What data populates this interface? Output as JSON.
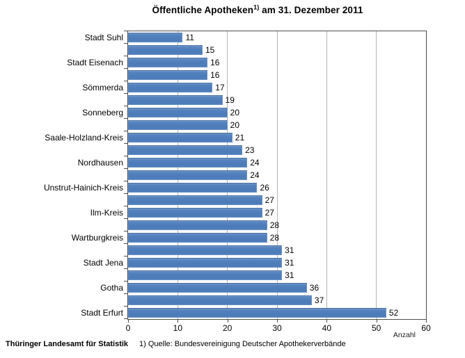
{
  "title": {
    "main": "Öffentliche Apotheken",
    "sup": "1)",
    "rest": " am 31. Dezember 2011"
  },
  "chart_data": {
    "type": "bar",
    "orientation": "horizontal",
    "title": "Öffentliche Apotheken 1) am 31. Dezember 2011",
    "xlabel": "Anzahl",
    "xlim": [
      0,
      60
    ],
    "xticks": [
      0,
      10,
      20,
      30,
      40,
      50,
      60
    ],
    "grid": "vertical-gridlines-at-xticks",
    "legend": "none",
    "value_labels_shown": true,
    "categories": [
      "Stadt Suhl",
      "",
      "Stadt Eisenach",
      "",
      "Sömmerda",
      "",
      "Sonneberg",
      "",
      "Saale-Holzland-Kreis",
      "",
      "Nordhausen",
      "",
      "Unstrut-Hainich-Kreis",
      "",
      "Ilm-Kreis",
      "",
      "Wartburgkreis",
      "",
      "Stadt Jena",
      "",
      "Gotha",
      "",
      "Stadt Erfurt"
    ],
    "values": [
      11,
      15,
      16,
      16,
      17,
      19,
      20,
      20,
      21,
      23,
      24,
      24,
      26,
      27,
      27,
      28,
      28,
      31,
      31,
      31,
      36,
      37,
      52
    ],
    "colors": {
      "bar": "#4F81BD",
      "bar_border": "#44699F",
      "gridline": "#B3B3B3",
      "plot_border": "#4D4D4D",
      "text": "#000000"
    }
  },
  "footer": {
    "source_left": "Thüringer Landesamt für Statistik",
    "footnote": "1) Quelle: Bundesvereinigung Deutscher Apothekerverbände"
  }
}
